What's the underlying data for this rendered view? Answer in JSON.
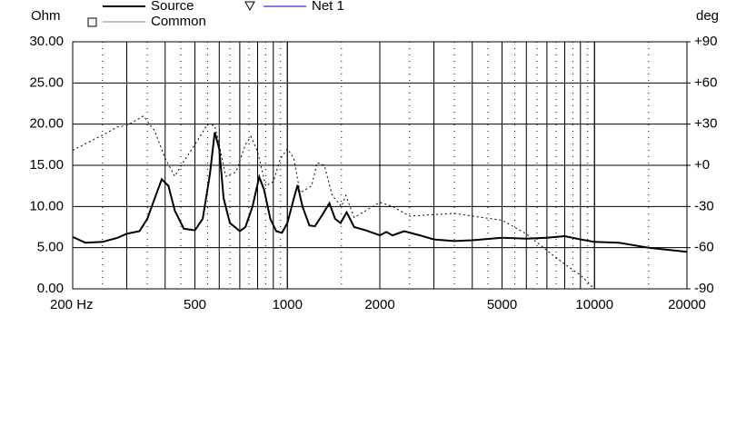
{
  "chart_data": {
    "type": "line",
    "ylabel": "Ohm",
    "y2label": "deg",
    "xscale": "log",
    "grid": true,
    "xlim": [
      200,
      20000
    ],
    "xticks": [
      {
        "value": 200,
        "label": "200 Hz"
      },
      500,
      1000,
      2000,
      5000,
      10000,
      20000
    ],
    "ylim": [
      0,
      30
    ],
    "yticks": [
      {
        "value": 0,
        "label": "0.00"
      },
      {
        "value": 5,
        "label": "5.00"
      },
      {
        "value": 10,
        "label": "10.00"
      },
      {
        "value": 15,
        "label": "15.00"
      },
      {
        "value": 20,
        "label": "20.00"
      },
      {
        "value": 25,
        "label": "25.00"
      },
      {
        "value": 30,
        "label": "30.00"
      }
    ],
    "y2lim": [
      -90,
      90
    ],
    "y2ticks": [
      {
        "value": -90,
        "label": "-90"
      },
      {
        "value": -60,
        "label": "-60"
      },
      {
        "value": -30,
        "label": "-30"
      },
      {
        "value": 0,
        "label": "+0"
      },
      {
        "value": 30,
        "label": "+30"
      },
      {
        "value": 60,
        "label": "+60"
      },
      {
        "value": 90,
        "label": "+90"
      }
    ],
    "series": [
      {
        "name": "Source",
        "color": "#000000",
        "style": "solid",
        "x": [
          200,
          220,
          250,
          280,
          300,
          330,
          350,
          370,
          390,
          410,
          430,
          460,
          500,
          530,
          560,
          580,
          600,
          620,
          650,
          700,
          730,
          770,
          810,
          840,
          880,
          920,
          960,
          1000,
          1050,
          1080,
          1120,
          1180,
          1230,
          1300,
          1370,
          1430,
          1490,
          1560,
          1650,
          1800,
          2000,
          2100,
          2200,
          2400,
          2700,
          3000,
          3500,
          4000,
          5000,
          6000,
          7000,
          8000,
          9000,
          10000,
          12000,
          15000,
          20000
        ],
        "values": [
          6.3,
          5.6,
          5.7,
          6.2,
          6.7,
          7.0,
          8.5,
          11,
          13.3,
          12.5,
          9.5,
          7.3,
          7.1,
          8.5,
          14,
          19,
          17,
          11,
          8,
          7.0,
          7.5,
          10,
          13.6,
          12,
          8.5,
          7,
          6.8,
          8,
          11,
          12.6,
          10,
          7.7,
          7.6,
          9,
          10.4,
          8.5,
          8,
          9.3,
          7.5,
          7.1,
          6.5,
          6.9,
          6.5,
          7.0,
          6.5,
          6.0,
          5.8,
          5.9,
          6.2,
          6.1,
          6.2,
          6.4,
          6.0,
          5.7,
          5.6,
          5.0,
          4.5
        ]
      },
      {
        "name": "Net 1",
        "color": "#0000cc",
        "style": "solid",
        "marker": "triangle",
        "x": [],
        "values": []
      },
      {
        "name": "Common",
        "color": "#808080",
        "style": "dotted",
        "marker": "square",
        "axis": "y2",
        "x": [
          200,
          250,
          280,
          300,
          340,
          370,
          400,
          430,
          460,
          500,
          550,
          580,
          600,
          630,
          680,
          730,
          760,
          800,
          850,
          900,
          950,
          1000,
          1050,
          1100,
          1200,
          1250,
          1320,
          1400,
          1500,
          1550,
          1650,
          2000,
          2200,
          2500,
          3500,
          4000,
          5000,
          6000,
          7000,
          8000,
          9000,
          10000
        ],
        "values": [
          11,
          22,
          28,
          29,
          36,
          25,
          5,
          -8,
          3,
          15,
          30,
          29,
          15,
          -8,
          -5,
          15,
          21,
          10,
          -15,
          -12,
          5,
          12,
          5,
          -20,
          -15,
          2,
          0,
          -22,
          -30,
          -22,
          -38,
          -27,
          -30,
          -37,
          -35,
          -37,
          -40,
          -50,
          -62,
          -72,
          -80,
          -90
        ]
      }
    ]
  }
}
